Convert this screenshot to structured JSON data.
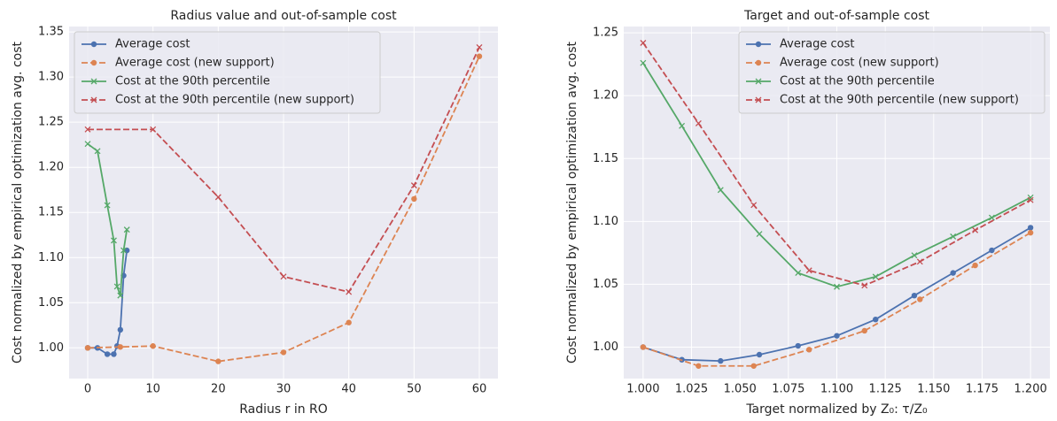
{
  "chart_data": [
    {
      "type": "line",
      "title": "Radius value and out-of-sample cost",
      "x_label": "Radius r in RO",
      "y_label": "Cost normalized by empirical optimization avg. cost",
      "xlim": [
        -2.85,
        62.85
      ],
      "ylim": [
        0.966,
        1.356
      ],
      "xticks": [
        0,
        10,
        20,
        30,
        40,
        50,
        60
      ],
      "yticks": [
        {
          "value": 1.0,
          "label": "1.00"
        },
        {
          "value": 1.05,
          "label": "1.05"
        },
        {
          "value": 1.1,
          "label": "1.10"
        },
        {
          "value": 1.15,
          "label": "1.15"
        },
        {
          "value": 1.2,
          "label": "1.20"
        },
        {
          "value": 1.25,
          "label": "1.25"
        },
        {
          "value": 1.3,
          "label": "1.30"
        },
        {
          "value": 1.35,
          "label": "1.35"
        }
      ],
      "grid": true,
      "legend": "upper left",
      "series": [
        {
          "name": "Average cost",
          "color": "#4c72b0",
          "marker": "o",
          "linestyle": "solid",
          "x": [
            0,
            1.5,
            3,
            4,
            4.5,
            5,
            5.5,
            6
          ],
          "values": [
            1.0,
            1.0,
            0.993,
            0.993,
            1.002,
            1.02,
            1.08,
            1.108
          ]
        },
        {
          "name": "Average cost (new support)",
          "color": "#dd8452",
          "marker": "o",
          "linestyle": "dashed",
          "x": [
            0,
            5,
            10,
            20,
            30,
            40,
            50,
            60
          ],
          "values": [
            1.0,
            1.001,
            1.002,
            0.985,
            0.995,
            1.028,
            1.165,
            1.323
          ]
        },
        {
          "name": "Cost at the 90th percentile",
          "color": "#55a868",
          "marker": "x",
          "linestyle": "solid",
          "x": [
            0,
            1.5,
            3,
            4,
            4.5,
            5,
            5.5,
            6
          ],
          "values": [
            1.226,
            1.218,
            1.158,
            1.119,
            1.068,
            1.058,
            1.108,
            1.131
          ]
        },
        {
          "name": "Cost at the 90th percentile (new support)",
          "color": "#c44e52",
          "marker": "x",
          "linestyle": "dashed",
          "x": [
            0,
            10,
            20,
            30,
            40,
            50,
            60
          ],
          "values": [
            1.242,
            1.242,
            1.167,
            1.079,
            1.062,
            1.18,
            1.333
          ]
        }
      ]
    },
    {
      "type": "line",
      "title": "Target and out-of-sample cost",
      "x_label": "Target normalized by Z₀:  τ/Z₀",
      "y_label": "Cost normalized by empirical optimization avg. cost",
      "xlim": [
        0.99,
        1.21
      ],
      "ylim": [
        0.975,
        1.255
      ],
      "xticks": [
        {
          "value": 1.0,
          "label": "1.000"
        },
        {
          "value": 1.025,
          "label": "1.025"
        },
        {
          "value": 1.05,
          "label": "1.050"
        },
        {
          "value": 1.075,
          "label": "1.075"
        },
        {
          "value": 1.1,
          "label": "1.100"
        },
        {
          "value": 1.125,
          "label": "1.125"
        },
        {
          "value": 1.15,
          "label": "1.150"
        },
        {
          "value": 1.175,
          "label": "1.175"
        },
        {
          "value": 1.2,
          "label": "1.200"
        }
      ],
      "yticks": [
        {
          "value": 1.0,
          "label": "1.00"
        },
        {
          "value": 1.05,
          "label": "1.05"
        },
        {
          "value": 1.1,
          "label": "1.10"
        },
        {
          "value": 1.15,
          "label": "1.15"
        },
        {
          "value": 1.2,
          "label": "1.20"
        },
        {
          "value": 1.25,
          "label": "1.25"
        }
      ],
      "grid": true,
      "legend": "upper right",
      "series": [
        {
          "name": "Average cost",
          "color": "#4c72b0",
          "marker": "o",
          "linestyle": "solid",
          "x": [
            1.0,
            1.02,
            1.04,
            1.06,
            1.08,
            1.1,
            1.12,
            1.14,
            1.16,
            1.18,
            1.2
          ],
          "values": [
            1.0,
            0.99,
            0.989,
            0.994,
            1.001,
            1.009,
            1.022,
            1.041,
            1.059,
            1.077,
            1.095
          ]
        },
        {
          "name": "Average cost (new support)",
          "color": "#dd8452",
          "marker": "o",
          "linestyle": "dashed",
          "x": [
            1.0,
            1.0286,
            1.0571,
            1.0857,
            1.1143,
            1.1429,
            1.1714,
            1.2
          ],
          "values": [
            1.0,
            0.985,
            0.985,
            0.998,
            1.013,
            1.038,
            1.065,
            1.091
          ]
        },
        {
          "name": "Cost at the 90th percentile",
          "color": "#55a868",
          "marker": "x",
          "linestyle": "solid",
          "x": [
            1.0,
            1.02,
            1.04,
            1.06,
            1.08,
            1.1,
            1.12,
            1.14,
            1.16,
            1.18,
            1.2
          ],
          "values": [
            1.226,
            1.176,
            1.125,
            1.09,
            1.059,
            1.048,
            1.056,
            1.073,
            1.088,
            1.103,
            1.119
          ]
        },
        {
          "name": "Cost at the 90th percentile (new support)",
          "color": "#c44e52",
          "marker": "x",
          "linestyle": "dashed",
          "x": [
            1.0,
            1.0286,
            1.0571,
            1.0857,
            1.1143,
            1.1429,
            1.1714,
            1.2
          ],
          "values": [
            1.242,
            1.178,
            1.113,
            1.061,
            1.049,
            1.068,
            1.093,
            1.117
          ]
        }
      ]
    }
  ]
}
